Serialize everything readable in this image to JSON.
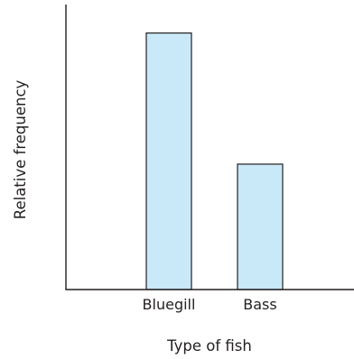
{
  "chart_data": {
    "type": "bar",
    "title": "",
    "xlabel": "Type of fish",
    "ylabel": "Relative frequency",
    "categories": [
      "Bluegill",
      "Bass"
    ],
    "values": [
      0.9,
      0.44
    ],
    "ylim": [
      0,
      1
    ],
    "grid": false,
    "show_y_ticks": false,
    "bar_color": "#c9e8f8",
    "edge_color": "#231f20"
  }
}
